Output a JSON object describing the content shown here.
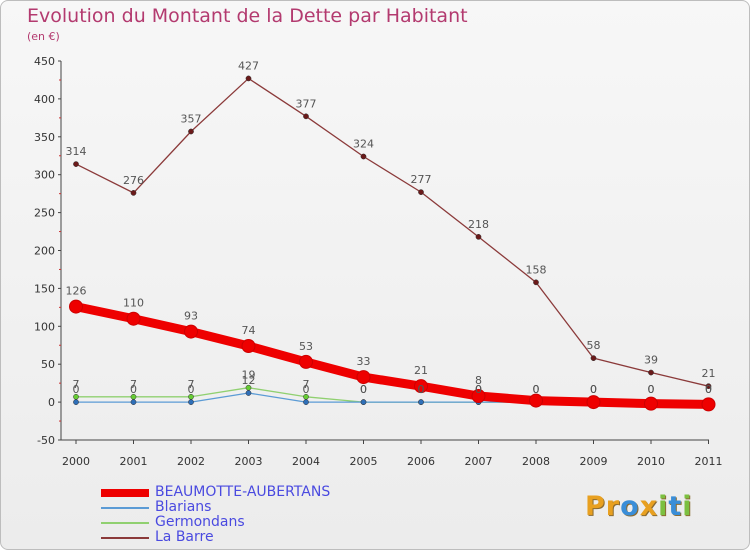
{
  "header": {
    "title": "Evolution du Montant de la Dette par Habitant",
    "subtitle": "(en €)"
  },
  "logo": {
    "text": "Proxiti",
    "letters": [
      "P",
      "r",
      "o",
      "x",
      "i",
      "t",
      "i"
    ],
    "colors": [
      "#e8a020",
      "#e8a020",
      "#3a8ed8",
      "#e8a020",
      "#7cc040",
      "#3a8ed8",
      "#7cc040"
    ]
  },
  "chart_data": {
    "type": "line",
    "title": "Evolution du Montant de la Dette par Habitant",
    "ylabel": "(en €)",
    "xlabel": "",
    "x": [
      "2000",
      "2001",
      "2002",
      "2003",
      "2004",
      "2005",
      "2006",
      "2007",
      "2008",
      "2009",
      "2010",
      "2011"
    ],
    "ylim": [
      -50,
      450
    ],
    "yticks": [
      -50,
      0,
      50,
      100,
      150,
      200,
      250,
      300,
      350,
      400,
      450
    ],
    "grid": false,
    "legend_position": "bottom-left",
    "series": [
      {
        "name": "BEAUMOTTE-AUBERTANS",
        "color": "#ee0000",
        "marker_fill": "#ee0000",
        "thick": true,
        "values": [
          126,
          110,
          93,
          74,
          53,
          33,
          21,
          8,
          2,
          0,
          -2,
          -3
        ],
        "labels": [
          "126",
          "110",
          "93",
          "74",
          "53",
          "33",
          "21",
          "8",
          "",
          "",
          "",
          ""
        ]
      },
      {
        "name": "Blarians",
        "color": "#5b9bd5",
        "marker_fill": "#2f6fb8",
        "thick": false,
        "values": [
          0,
          0,
          0,
          12,
          0,
          0,
          0,
          0,
          0,
          0,
          0,
          0
        ],
        "labels": [
          "0",
          "0",
          "0",
          "12",
          "0",
          "0",
          "0",
          "0",
          "0",
          "0",
          "0",
          "0"
        ]
      },
      {
        "name": "Germondans",
        "color": "#90d070",
        "marker_fill": "#66cc33",
        "thick": false,
        "values": [
          7,
          7,
          7,
          19,
          7,
          0,
          0,
          0,
          0,
          0,
          0,
          0
        ],
        "labels": [
          "7",
          "7",
          "7",
          "19",
          "7",
          "0",
          "0",
          "0",
          "0",
          "0",
          "0",
          "0"
        ]
      },
      {
        "name": "La Barre",
        "color": "#8b3a3a",
        "marker_fill": "#6b1a1a",
        "thick": false,
        "values": [
          314,
          276,
          357,
          427,
          377,
          324,
          277,
          218,
          158,
          58,
          39,
          21
        ],
        "labels": [
          "314",
          "276",
          "357",
          "427",
          "377",
          "324",
          "277",
          "218",
          "158",
          "58",
          "39",
          "21"
        ]
      }
    ]
  }
}
